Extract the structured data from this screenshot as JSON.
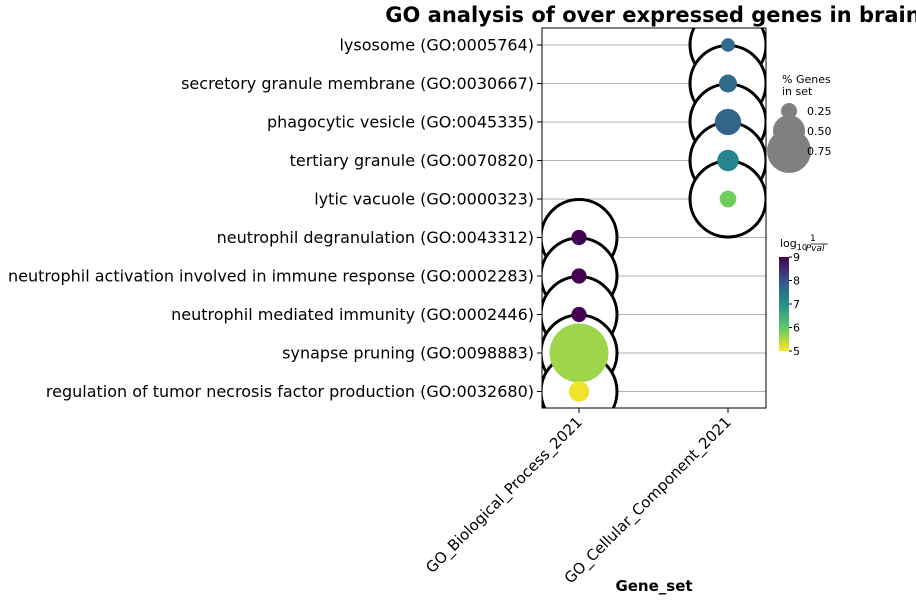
{
  "chart_data": {
    "type": "scatter",
    "title": "GO analysis of over expressed genes in brain",
    "xlabel": "Gene_set",
    "ylabel": "",
    "x_categories": [
      "GO_Biological_Process_2021",
      "GO_Cellular_Component_2021"
    ],
    "y_categories": [
      "lysosome (GO:0005764)",
      "secretory granule membrane (GO:0030667)",
      "phagocytic vesicle (GO:0045335)",
      "tertiary granule (GO:0070820)",
      "lytic vacuole (GO:0000323)",
      "neutrophil degranulation (GO:0043312)",
      "neutrophil activation involved in immune response (GO:0002283)",
      "neutrophil mediated immunity (GO:0002446)",
      "synapse pruning (GO:0098883)",
      "regulation of tumor necrosis factor production (GO:0032680)"
    ],
    "points": [
      {
        "x": "GO_Cellular_Component_2021",
        "y": "lysosome (GO:0005764)",
        "pct_genes": 0.04,
        "log10_inv_pval": 7.6
      },
      {
        "x": "GO_Cellular_Component_2021",
        "y": "secretory granule membrane (GO:0030667)",
        "pct_genes": 0.07,
        "log10_inv_pval": 7.6
      },
      {
        "x": "GO_Cellular_Component_2021",
        "y": "phagocytic vesicle (GO:0045335)",
        "pct_genes": 0.15,
        "log10_inv_pval": 7.7
      },
      {
        "x": "GO_Cellular_Component_2021",
        "y": "tertiary granule (GO:0070820)",
        "pct_genes": 0.1,
        "log10_inv_pval": 7.2
      },
      {
        "x": "GO_Cellular_Component_2021",
        "y": "lytic vacuole (GO:0000323)",
        "pct_genes": 0.06,
        "log10_inv_pval": 5.9
      },
      {
        "x": "GO_Biological_Process_2021",
        "y": "neutrophil degranulation (GO:0043312)",
        "pct_genes": 0.05,
        "log10_inv_pval": 9.0
      },
      {
        "x": "GO_Biological_Process_2021",
        "y": "neutrophil activation involved in immune response (GO:0002283)",
        "pct_genes": 0.05,
        "log10_inv_pval": 9.0
      },
      {
        "x": "GO_Biological_Process_2021",
        "y": "neutrophil mediated immunity (GO:0002446)",
        "pct_genes": 0.05,
        "log10_inv_pval": 9.0
      },
      {
        "x": "GO_Biological_Process_2021",
        "y": "synapse pruning (GO:0098883)",
        "pct_genes": 0.75,
        "log10_inv_pval": 5.6
      },
      {
        "x": "GO_Biological_Process_2021",
        "y": "regulation of tumor necrosis factor production (GO:0032680)",
        "pct_genes": 0.09,
        "log10_inv_pval": 5.1
      }
    ],
    "size_legend": {
      "title_lines": [
        "% Genes",
        "in set"
      ],
      "entries": [
        {
          "label": "0.25",
          "value": 0.25
        },
        {
          "label": "0.50",
          "value": 0.5
        },
        {
          "label": "0.75",
          "value": 0.75
        }
      ]
    },
    "color_legend": {
      "title": "log10 1/Pval",
      "range": [
        5,
        9
      ],
      "ticks": [
        "5",
        "6",
        "7",
        "8",
        "9"
      ],
      "colormap": "viridis_r"
    },
    "grid": {
      "horizontal": true,
      "vertical": false
    },
    "outline_rings": true
  }
}
